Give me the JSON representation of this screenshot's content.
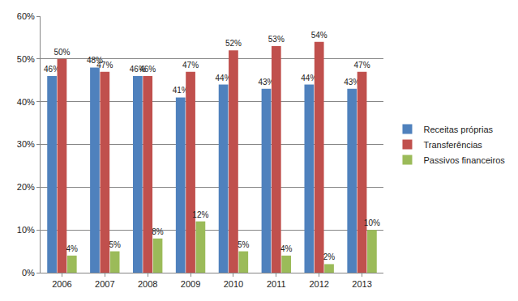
{
  "chart_data": {
    "type": "bar",
    "categories": [
      "2006",
      "2007",
      "2008",
      "2009",
      "2010",
      "2011",
      "2012",
      "2013"
    ],
    "series": [
      {
        "name": "Receitas próprias",
        "color": "#4F81BD",
        "values": [
          46,
          48,
          46,
          41,
          44,
          43,
          44,
          43
        ],
        "value_labels": [
          "46%",
          "48%",
          "46%",
          "41%",
          "44%",
          "43%",
          "44%",
          "43%"
        ]
      },
      {
        "name": "Transferências",
        "color": "#C0504D",
        "values": [
          50,
          47,
          46,
          47,
          52,
          53,
          54,
          47
        ],
        "value_labels": [
          "50%",
          "47%",
          "46%",
          "47%",
          "52%",
          "53%",
          "54%",
          "47%"
        ]
      },
      {
        "name": "Passivos financeiros",
        "color": "#9BBB59",
        "values": [
          4,
          5,
          8,
          12,
          5,
          4,
          2,
          10
        ],
        "value_labels": [
          "4%",
          "5%",
          "8%",
          "12%",
          "5%",
          "4%",
          "2%",
          "10%"
        ]
      }
    ],
    "ylim": [
      0,
      60
    ],
    "yticks": [
      {
        "value": 0,
        "label": "0%"
      },
      {
        "value": 10,
        "label": "10%"
      },
      {
        "value": 20,
        "label": "20%"
      },
      {
        "value": 30,
        "label": "30%"
      },
      {
        "value": 40,
        "label": "40%"
      },
      {
        "value": 50,
        "label": "50%"
      },
      {
        "value": 60,
        "label": "60%"
      }
    ],
    "grid": true,
    "legend": "right",
    "data_labels": true
  }
}
